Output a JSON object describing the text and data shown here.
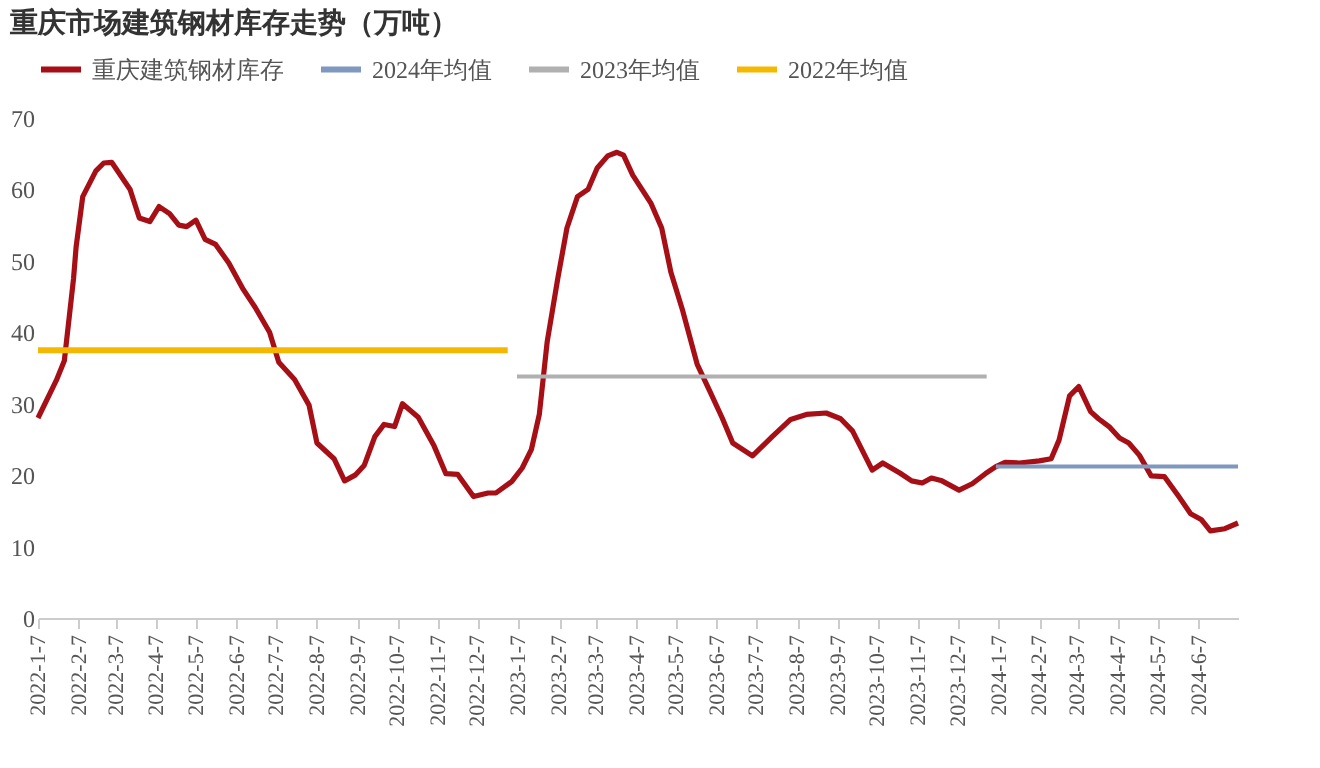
{
  "chart_data": {
    "type": "line",
    "title": "重庆市场建筑钢材库存走势（万吨）",
    "ylim": [
      0,
      70
    ],
    "yticks": [
      0,
      10,
      20,
      30,
      40,
      50,
      60,
      70
    ],
    "xlim": [
      "2022-01-07",
      "2024-07-07"
    ],
    "xticks": [
      {
        "value": "2022-01-07",
        "label": "2022-1-7"
      },
      {
        "value": "2022-02-07",
        "label": "2022-2-7"
      },
      {
        "value": "2022-03-07",
        "label": "2022-3-7"
      },
      {
        "value": "2022-04-07",
        "label": "2022-4-7"
      },
      {
        "value": "2022-05-07",
        "label": "2022-5-7"
      },
      {
        "value": "2022-06-07",
        "label": "2022-6-7"
      },
      {
        "value": "2022-07-07",
        "label": "2022-7-7"
      },
      {
        "value": "2022-08-07",
        "label": "2022-8-7"
      },
      {
        "value": "2022-09-07",
        "label": "2022-9-7"
      },
      {
        "value": "2022-10-07",
        "label": "2022-10-7"
      },
      {
        "value": "2022-11-07",
        "label": "2022-11-7"
      },
      {
        "value": "2022-12-07",
        "label": "2022-12-7"
      },
      {
        "value": "2023-01-07",
        "label": "2023-1-7"
      },
      {
        "value": "2023-02-07",
        "label": "2023-2-7"
      },
      {
        "value": "2023-03-07",
        "label": "2023-3-7"
      },
      {
        "value": "2023-04-07",
        "label": "2023-4-7"
      },
      {
        "value": "2023-05-07",
        "label": "2023-5-7"
      },
      {
        "value": "2023-06-07",
        "label": "2023-6-7"
      },
      {
        "value": "2023-07-07",
        "label": "2023-7-7"
      },
      {
        "value": "2023-08-07",
        "label": "2023-8-7"
      },
      {
        "value": "2023-09-07",
        "label": "2023-9-7"
      },
      {
        "value": "2023-10-07",
        "label": "2023-10-7"
      },
      {
        "value": "2023-11-07",
        "label": "2023-11-7"
      },
      {
        "value": "2023-12-07",
        "label": "2023-12-7"
      },
      {
        "value": "2024-01-07",
        "label": "2024-1-7"
      },
      {
        "value": "2024-02-07",
        "label": "2024-2-7"
      },
      {
        "value": "2024-03-07",
        "label": "2024-3-7"
      },
      {
        "value": "2024-04-07",
        "label": "2024-4-7"
      },
      {
        "value": "2024-05-07",
        "label": "2024-5-7"
      },
      {
        "value": "2024-06-07",
        "label": "2024-6-7"
      }
    ],
    "grid": false,
    "legend": "top",
    "marker": "none",
    "line_style": "solid",
    "series": [
      {
        "name": "重庆建筑钢材库存",
        "color": "#a50f15",
        "x": [
          "2022-01-07",
          "2022-01-21",
          "2022-01-27",
          "2022-02-03",
          "2022-02-05",
          "2022-02-10",
          "2022-02-20",
          "2022-02-26",
          "2022-03-04",
          "2022-03-18",
          "2022-03-25",
          "2022-04-02",
          "2022-04-09",
          "2022-04-17",
          "2022-04-24",
          "2022-04-30",
          "2022-05-07",
          "2022-05-14",
          "2022-05-22",
          "2022-06-01",
          "2022-06-12",
          "2022-06-21",
          "2022-07-02",
          "2022-07-09",
          "2022-07-21",
          "2022-08-01",
          "2022-08-07",
          "2022-08-20",
          "2022-08-28",
          "2022-09-05",
          "2022-09-12",
          "2022-09-20",
          "2022-09-27",
          "2022-10-05",
          "2022-10-11",
          "2022-10-23",
          "2022-11-04",
          "2022-11-13",
          "2022-11-22",
          "2022-12-04",
          "2022-12-15",
          "2022-12-21",
          "2023-01-02",
          "2023-01-10",
          "2023-01-17",
          "2023-01-23",
          "2023-01-29",
          "2023-02-06",
          "2023-02-13",
          "2023-02-21",
          "2023-03-01",
          "2023-03-08",
          "2023-03-16",
          "2023-03-23",
          "2023-03-28",
          "2023-04-04",
          "2023-04-18",
          "2023-04-26",
          "2023-05-03",
          "2023-05-12",
          "2023-05-23",
          "2023-06-02",
          "2023-06-11",
          "2023-06-19",
          "2023-07-04",
          "2023-07-19",
          "2023-08-02",
          "2023-08-14",
          "2023-08-29",
          "2023-09-09",
          "2023-09-18",
          "2023-10-03",
          "2023-10-11",
          "2023-10-24",
          "2023-11-02",
          "2023-11-10",
          "2023-11-17",
          "2023-11-25",
          "2023-12-08",
          "2023-12-18",
          "2023-12-28",
          "2024-01-05",
          "2024-01-12",
          "2024-01-23",
          "2024-02-07",
          "2024-02-16",
          "2024-02-22",
          "2024-03-01",
          "2024-03-08",
          "2024-03-17",
          "2024-03-23",
          "2024-03-31",
          "2024-04-08",
          "2024-04-15",
          "2024-04-23",
          "2024-05-02",
          "2024-05-12",
          "2024-05-23",
          "2024-06-01",
          "2024-06-09",
          "2024-06-16",
          "2024-06-27",
          "2024-07-07"
        ],
        "values": [
          28.0,
          33.3,
          36.0,
          47.5,
          52.0,
          59.0,
          62.6,
          63.7,
          63.8,
          60.0,
          56.0,
          55.5,
          57.6,
          56.6,
          55.0,
          54.8,
          55.7,
          53.0,
          52.3,
          49.7,
          46.0,
          43.5,
          40.0,
          35.8,
          33.4,
          29.8,
          24.5,
          22.3,
          19.2,
          20.0,
          21.4,
          25.4,
          27.1,
          26.8,
          30.0,
          28.1,
          24.1,
          20.2,
          20.1,
          17.0,
          17.5,
          17.5,
          19.1,
          21.0,
          23.6,
          28.5,
          38.7,
          47.5,
          54.6,
          59.0,
          60.0,
          63.0,
          64.7,
          65.2,
          64.8,
          62.0,
          58.0,
          54.6,
          48.4,
          43.0,
          35.5,
          31.6,
          28.0,
          24.5,
          22.7,
          25.4,
          27.8,
          28.5,
          28.7,
          27.9,
          26.2,
          20.7,
          21.7,
          20.3,
          19.2,
          18.9,
          19.6,
          19.2,
          17.9,
          18.8,
          20.2,
          21.2,
          21.8,
          21.7,
          22.0,
          22.3,
          24.9,
          31.1,
          32.4,
          28.9,
          27.9,
          26.8,
          25.2,
          24.5,
          22.8,
          19.9,
          19.8,
          17.0,
          14.6,
          13.8,
          12.2,
          12.5,
          13.3
        ]
      },
      {
        "name": "2024年均值",
        "color": "#7f98c0",
        "x": [
          "2024-01-05",
          "2024-07-07"
        ],
        "values": [
          21.2,
          21.2
        ]
      },
      {
        "name": "2023年均值",
        "color": "#b0b0b0",
        "x": [
          "2023-01-06",
          "2023-12-29"
        ],
        "values": [
          33.8,
          33.8
        ]
      },
      {
        "name": "2022年均值",
        "color": "#f5b800",
        "x": [
          "2022-01-07",
          "2022-12-30"
        ],
        "values": [
          37.5,
          37.5
        ]
      }
    ]
  }
}
